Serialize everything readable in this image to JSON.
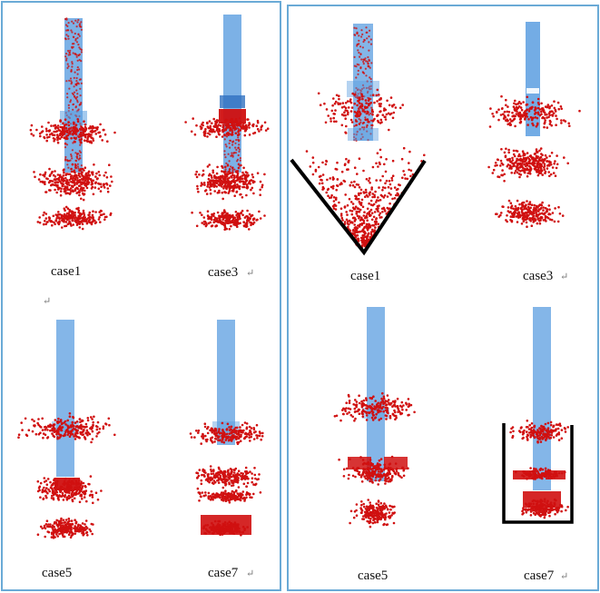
{
  "colors": {
    "panel_border": "#6aaad6",
    "particle": "#d01010",
    "pipe": "#5b9ee0",
    "pipe_dark": "#8a2040",
    "boundary_line": "#000000"
  },
  "left_panel": {
    "cells": [
      {
        "caption": "case1",
        "mark": ""
      },
      {
        "caption": "case3",
        "mark": "↵"
      },
      {
        "caption": "case5",
        "mark": ""
      },
      {
        "caption": "case7",
        "mark": "↵"
      }
    ],
    "stray_mark": "↵"
  },
  "right_panel": {
    "cells": [
      {
        "caption": "case1",
        "mark": "",
        "overlay": "v-shape"
      },
      {
        "caption": "case3",
        "mark": "↵",
        "overlay": ""
      },
      {
        "caption": "case5",
        "mark": "",
        "overlay": ""
      },
      {
        "caption": "case7",
        "mark": "↵",
        "overlay": "u-bracket"
      }
    ]
  }
}
